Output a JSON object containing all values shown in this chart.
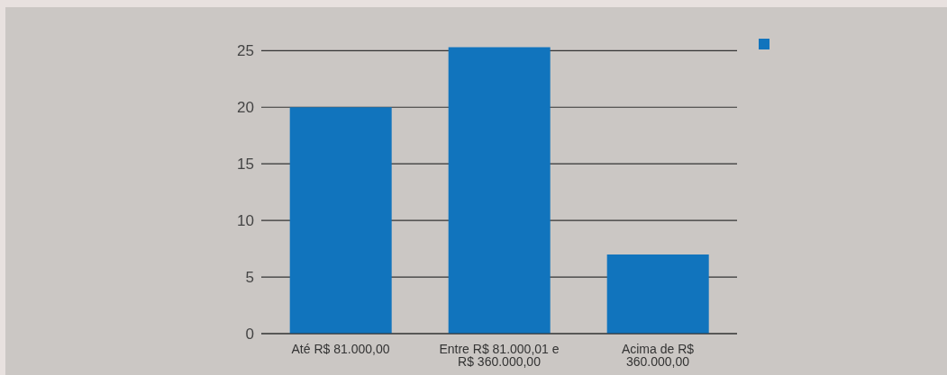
{
  "chart_data": {
    "type": "bar",
    "categories": [
      "Até R$ 81.000,00",
      "Entre R$ 81.000,01 e R$ 360.000,00",
      "Acima de R$ 360.000,00"
    ],
    "series": [
      {
        "color": "#1174bd",
        "values": [
          20,
          25.3,
          7
        ]
      }
    ],
    "ylim": [
      0,
      25.5
    ],
    "yticks": [
      0,
      5,
      10,
      15,
      20,
      25
    ],
    "grid": "y"
  }
}
